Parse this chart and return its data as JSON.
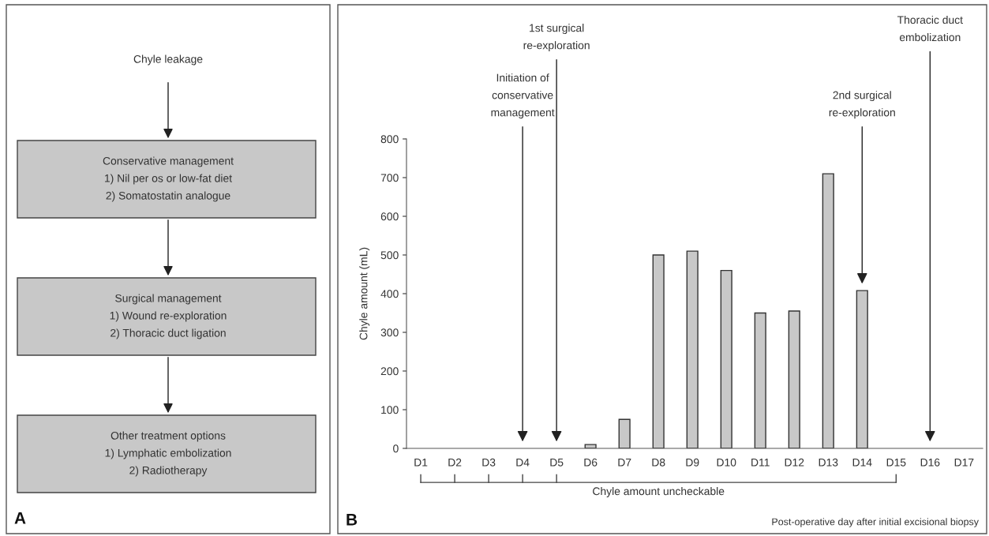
{
  "chart_data": [
    {
      "type": "other",
      "title": "A",
      "annotations": [
        "Chyle leakage",
        "Conservative management\n1) Nil per os or low-fat diet\n2) Somatostatin analogue",
        "Surgical management\n1) Wound re-exploration\n2) Thoracic duct ligation",
        "Other treatment options\n1) Lymphatic embolization\n2) Radiotherapy"
      ],
      "color": "#c8c8c8"
    },
    {
      "type": "bar",
      "title": "B",
      "xlabel": "Post-operative day after initial excisional biopsy",
      "ylabel": "Chyle amount (mL)",
      "categories": [
        "D1",
        "D2",
        "D3",
        "D4",
        "D5",
        "D6",
        "D7",
        "D8",
        "D9",
        "D10",
        "D11",
        "D12",
        "D13",
        "D14",
        "D15",
        "D16",
        "D17"
      ],
      "values": [
        null,
        null,
        null,
        null,
        null,
        10,
        75,
        500,
        510,
        460,
        350,
        355,
        710,
        408,
        null,
        null,
        null
      ],
      "color": "#c8c8c8",
      "ylim": [
        0,
        800
      ],
      "yticks": [
        0,
        100,
        200,
        300,
        400,
        500,
        600,
        700,
        800
      ],
      "grid": false,
      "annotations": [
        "Initiation of\nconservative\nmanagement",
        "1st surgical\nre-exploration",
        "2nd surgical\nre-exploration",
        "Thoracic duct\nembolization",
        "Chyle amount uncheckable"
      ]
    }
  ]
}
